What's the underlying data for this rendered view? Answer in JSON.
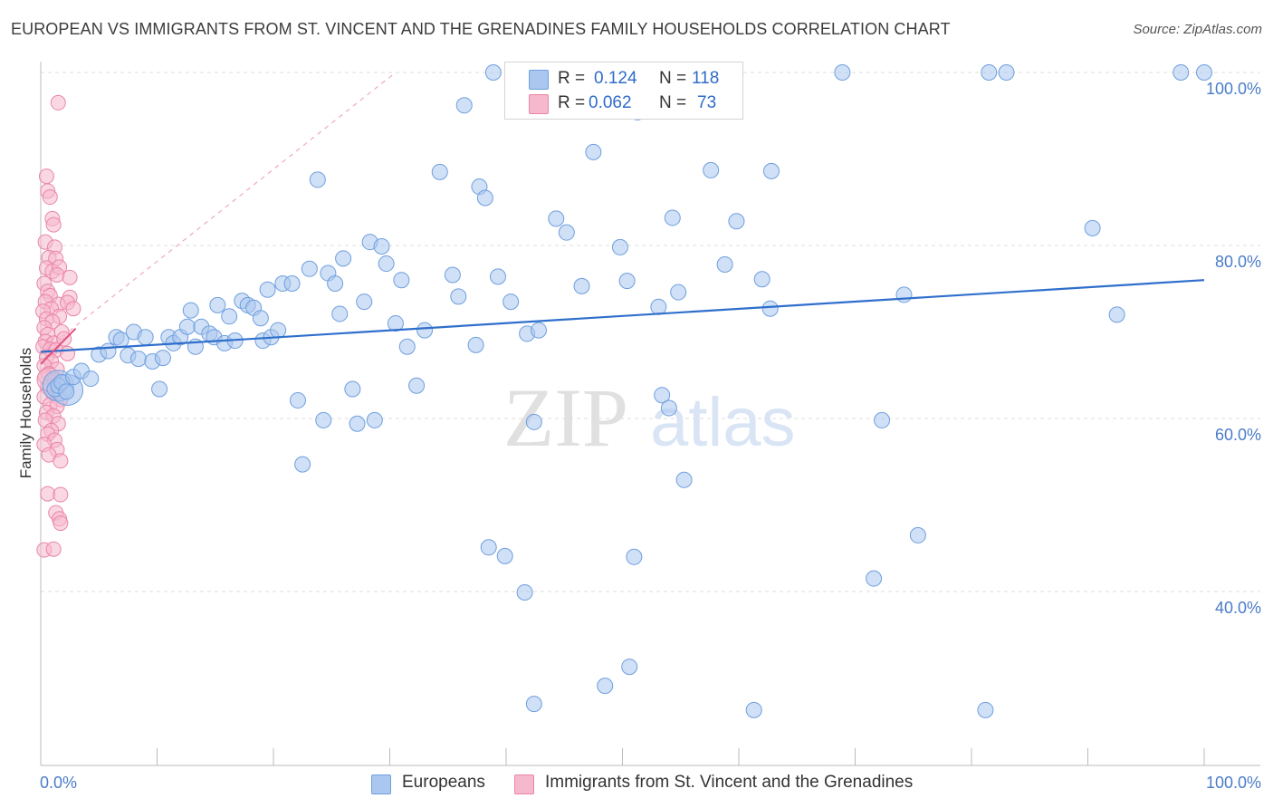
{
  "title": "EUROPEAN VS IMMIGRANTS FROM ST. VINCENT AND THE GRENADINES FAMILY HOUSEHOLDS CORRELATION CHART",
  "source": "Source: ZipAtlas.com",
  "watermark": {
    "zip": "ZIP",
    "atlas": "atlas"
  },
  "legend": {
    "series1": {
      "r_label": "R =",
      "r_value": "0.124",
      "n_label": "N =",
      "n_value": "118"
    },
    "series2": {
      "r_label": "R =",
      "r_value": "0.062",
      "n_label": "N =",
      "n_value": "73"
    }
  },
  "bottom_legend": {
    "series1": "Europeans",
    "series2": "Immigrants from St. Vincent and the Grenadines"
  },
  "colors": {
    "blue_fill": "#aac7ef",
    "blue_stroke": "#6f9fde",
    "blue_line": "#2f6fcc",
    "pink_fill": "#f6b8cc",
    "pink_stroke": "#ea85a6",
    "pink_line": "#e0507f",
    "grid": "#dddddd",
    "tick_label": "#4a7cc9"
  },
  "chart_data": {
    "type": "scatter",
    "title": "EUROPEAN VS IMMIGRANTS FROM ST. VINCENT AND THE GRENADINES FAMILY HOUSEHOLDS CORRELATION CHART",
    "xlabel": "",
    "ylabel": "Family Households",
    "xlim": [
      0,
      100
    ],
    "ylim": [
      18,
      102
    ],
    "y_ticks": [
      40,
      60,
      80,
      100
    ],
    "y_tick_labels": [
      "40.0%",
      "60.0%",
      "80.0%",
      "100.0%"
    ],
    "x_tick_labels": [
      "0.0%",
      "100.0%"
    ],
    "grid": true,
    "legend_position": "top-center",
    "series": [
      {
        "name": "Europeans",
        "color": "#6f9fde",
        "R": 0.124,
        "N": 118,
        "trend": {
          "x": [
            0,
            100
          ],
          "y": [
            67.7,
            76.0
          ]
        },
        "points": [
          [
            1.2,
            63.4
          ],
          [
            1.5,
            63.8
          ],
          [
            1.8,
            64.2
          ],
          [
            2.2,
            63.1
          ],
          [
            2.8,
            64.8
          ],
          [
            3.5,
            65.5
          ],
          [
            4.3,
            64.6
          ],
          [
            5.0,
            67.4
          ],
          [
            5.8,
            67.8
          ],
          [
            6.5,
            69.4
          ],
          [
            6.9,
            69.1
          ],
          [
            7.5,
            67.3
          ],
          [
            8.0,
            70.0
          ],
          [
            8.4,
            66.9
          ],
          [
            9.0,
            69.4
          ],
          [
            9.6,
            66.6
          ],
          [
            10.2,
            63.4
          ],
          [
            10.5,
            67.0
          ],
          [
            11.0,
            69.4
          ],
          [
            11.4,
            68.7
          ],
          [
            12.0,
            69.4
          ],
          [
            12.6,
            70.6
          ],
          [
            12.9,
            72.5
          ],
          [
            13.3,
            68.3
          ],
          [
            13.8,
            70.6
          ],
          [
            14.5,
            69.8
          ],
          [
            14.9,
            69.4
          ],
          [
            15.2,
            73.1
          ],
          [
            15.8,
            68.7
          ],
          [
            16.2,
            71.8
          ],
          [
            16.7,
            69.0
          ],
          [
            17.3,
            73.6
          ],
          [
            17.8,
            73.1
          ],
          [
            18.3,
            72.8
          ],
          [
            18.9,
            71.6
          ],
          [
            19.1,
            69.0
          ],
          [
            19.8,
            69.4
          ],
          [
            19.5,
            74.9
          ],
          [
            20.4,
            70.2
          ],
          [
            20.8,
            75.6
          ],
          [
            21.6,
            75.6
          ],
          [
            22.1,
            62.1
          ],
          [
            22.5,
            54.7
          ],
          [
            23.1,
            77.3
          ],
          [
            23.8,
            87.6
          ],
          [
            24.3,
            59.8
          ],
          [
            24.7,
            76.8
          ],
          [
            25.3,
            75.6
          ],
          [
            25.7,
            72.1
          ],
          [
            26.0,
            78.5
          ],
          [
            26.8,
            63.4
          ],
          [
            27.2,
            59.4
          ],
          [
            27.8,
            73.5
          ],
          [
            28.3,
            80.4
          ],
          [
            28.7,
            59.8
          ],
          [
            29.3,
            79.9
          ],
          [
            29.7,
            77.9
          ],
          [
            30.5,
            71.0
          ],
          [
            31.0,
            76.0
          ],
          [
            31.5,
            68.3
          ],
          [
            32.3,
            63.8
          ],
          [
            33.0,
            70.2
          ],
          [
            34.3,
            88.5
          ],
          [
            35.4,
            76.6
          ],
          [
            35.9,
            74.1
          ],
          [
            36.4,
            96.2
          ],
          [
            37.4,
            68.5
          ],
          [
            37.7,
            86.8
          ],
          [
            38.2,
            85.5
          ],
          [
            38.5,
            45.1
          ],
          [
            38.9,
            100.0
          ],
          [
            39.3,
            76.4
          ],
          [
            39.9,
            44.1
          ],
          [
            40.4,
            73.5
          ],
          [
            41.6,
            39.9
          ],
          [
            41.8,
            69.8
          ],
          [
            42.4,
            27.0
          ],
          [
            42.4,
            59.6
          ],
          [
            42.8,
            70.2
          ],
          [
            44.3,
            83.1
          ],
          [
            45.2,
            81.5
          ],
          [
            46.5,
            75.3
          ],
          [
            47.5,
            90.8
          ],
          [
            48.5,
            29.1
          ],
          [
            49.8,
            79.8
          ],
          [
            50.4,
            75.9
          ],
          [
            50.6,
            31.3
          ],
          [
            51.0,
            44.0
          ],
          [
            51.3,
            95.4
          ],
          [
            53.1,
            72.9
          ],
          [
            53.4,
            62.7
          ],
          [
            54.0,
            61.2
          ],
          [
            54.3,
            83.2
          ],
          [
            54.8,
            74.6
          ],
          [
            55.3,
            52.9
          ],
          [
            57.6,
            88.7
          ],
          [
            58.8,
            77.8
          ],
          [
            59.8,
            82.8
          ],
          [
            61.3,
            26.3
          ],
          [
            62.0,
            76.1
          ],
          [
            62.7,
            72.7
          ],
          [
            62.8,
            88.6
          ],
          [
            68.9,
            100.0
          ],
          [
            71.6,
            41.5
          ],
          [
            72.3,
            59.8
          ],
          [
            74.2,
            74.3
          ],
          [
            75.4,
            46.5
          ],
          [
            81.2,
            26.3
          ],
          [
            81.5,
            100.0
          ],
          [
            83.0,
            100.0
          ],
          [
            90.4,
            82.0
          ],
          [
            92.5,
            72.0
          ],
          [
            100.0,
            100.0
          ],
          [
            98.0,
            100.0
          ]
        ],
        "big_points": [
          [
            1.5,
            63.8
          ],
          [
            2.3,
            63.3
          ]
        ]
      },
      {
        "name": "Immigrants from St. Vincent and the Grenadines",
        "color": "#ea85a6",
        "R": 0.062,
        "N": 73,
        "trend": {
          "x": [
            0,
            3.0
          ],
          "y": [
            66.3,
            70.4
          ]
        },
        "points": [
          [
            1.5,
            96.5
          ],
          [
            0.5,
            88.0
          ],
          [
            0.6,
            86.3
          ],
          [
            0.8,
            85.6
          ],
          [
            1.0,
            83.1
          ],
          [
            1.1,
            82.4
          ],
          [
            0.4,
            80.4
          ],
          [
            1.2,
            79.8
          ],
          [
            0.7,
            78.6
          ],
          [
            1.3,
            78.5
          ],
          [
            0.5,
            77.4
          ],
          [
            1.0,
            77.0
          ],
          [
            1.6,
            77.5
          ],
          [
            1.4,
            76.6
          ],
          [
            2.5,
            76.3
          ],
          [
            0.3,
            75.6
          ],
          [
            0.6,
            74.7
          ],
          [
            0.8,
            74.2
          ],
          [
            2.5,
            74.0
          ],
          [
            0.4,
            73.5
          ],
          [
            1.5,
            73.2
          ],
          [
            2.3,
            73.4
          ],
          [
            0.9,
            72.7
          ],
          [
            0.2,
            72.4
          ],
          [
            1.6,
            71.8
          ],
          [
            2.8,
            72.7
          ],
          [
            0.5,
            71.5
          ],
          [
            1.0,
            71.2
          ],
          [
            0.3,
            70.5
          ],
          [
            1.8,
            70.0
          ],
          [
            0.6,
            69.7
          ],
          [
            0.4,
            68.9
          ],
          [
            1.1,
            68.7
          ],
          [
            2.0,
            69.2
          ],
          [
            0.2,
            68.3
          ],
          [
            0.8,
            68.0
          ],
          [
            1.3,
            67.9
          ],
          [
            2.3,
            67.5
          ],
          [
            0.5,
            67.1
          ],
          [
            0.9,
            66.6
          ],
          [
            0.3,
            66.1
          ],
          [
            1.4,
            65.7
          ],
          [
            0.7,
            65.2
          ],
          [
            0.4,
            64.8
          ],
          [
            1.2,
            64.4
          ],
          [
            0.6,
            63.6
          ],
          [
            1.0,
            63.0
          ],
          [
            0.3,
            62.5
          ],
          [
            1.7,
            62.2
          ],
          [
            0.8,
            61.6
          ],
          [
            1.4,
            61.4
          ],
          [
            0.5,
            60.7
          ],
          [
            1.1,
            60.3
          ],
          [
            0.4,
            59.8
          ],
          [
            1.5,
            59.4
          ],
          [
            0.9,
            58.6
          ],
          [
            0.6,
            58.2
          ],
          [
            1.2,
            57.5
          ],
          [
            0.3,
            57.0
          ],
          [
            1.4,
            56.4
          ],
          [
            0.7,
            55.8
          ],
          [
            1.7,
            55.1
          ],
          [
            0.6,
            51.3
          ],
          [
            1.7,
            51.2
          ],
          [
            1.3,
            49.1
          ],
          [
            1.6,
            48.4
          ],
          [
            1.7,
            47.9
          ],
          [
            0.3,
            44.8
          ],
          [
            1.1,
            44.9
          ]
        ],
        "big_points": [
          [
            0.7,
            64.5
          ]
        ]
      }
    ],
    "diagonal_reference": {
      "x": [
        0,
        30.5
      ],
      "y": [
        67.5,
        100.0
      ]
    }
  }
}
